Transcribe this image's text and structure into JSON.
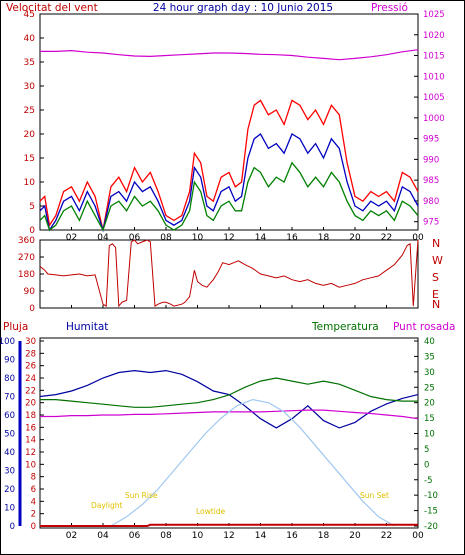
{
  "title": "24 hour graph day : 10 Junio 2015",
  "x_ticks": [
    "02",
    "04",
    "06",
    "08",
    "10",
    "12",
    "14",
    "16",
    "18",
    "20",
    "22",
    "00"
  ],
  "colors": {
    "wind_gust": "#ff0000",
    "wind_avg": "#0000c0",
    "wind_min": "#008000",
    "pressure": "#d000d0",
    "direction": "#c00000",
    "rain": "#c00000",
    "humidity": "#0000a0",
    "temperature": "#007000",
    "dewpoint": "#d000d0",
    "solar": "#a0c8f0",
    "sun_labels": "#e0c000"
  },
  "chart_data": [
    {
      "type": "line",
      "title": "",
      "left_label": "Velocitat del vent",
      "right_label": "Pressió",
      "x_range": [
        0,
        24
      ],
      "y_left_ticks": [
        0,
        5,
        10,
        15,
        20,
        25,
        30,
        35,
        40,
        45
      ],
      "y_left_range": [
        0,
        45
      ],
      "y_right_ticks": [
        975,
        980,
        985,
        990,
        995,
        1000,
        1005,
        1010,
        1015,
        1020,
        1025
      ],
      "y_right_range": [
        973,
        1025
      ],
      "series": [
        {
          "name": "gust",
          "axis": "left",
          "x": [
            0,
            0.3,
            0.6,
            1.0,
            1.5,
            2.0,
            2.5,
            3.0,
            3.5,
            4.0,
            4.5,
            5.0,
            5.5,
            6.0,
            6.5,
            7.0,
            7.5,
            8.0,
            8.5,
            9.0,
            9.5,
            9.8,
            10.2,
            10.6,
            11.0,
            11.5,
            12.0,
            12.4,
            12.8,
            13.2,
            13.6,
            14.0,
            14.5,
            15.0,
            15.5,
            16.0,
            16.5,
            17.0,
            17.5,
            18.0,
            18.5,
            19.0,
            19.5,
            20.0,
            20.5,
            21.0,
            21.5,
            22.0,
            22.5,
            23.0,
            23.5,
            24.0
          ],
          "y": [
            6,
            7,
            1,
            3,
            8,
            9,
            6,
            10,
            7,
            0,
            9,
            11,
            8,
            13,
            10,
            12,
            8,
            3,
            2,
            3,
            8,
            16,
            14,
            7,
            6,
            11,
            12,
            9,
            10,
            21,
            26,
            27,
            24,
            25,
            22,
            27,
            26,
            23,
            25,
            22,
            26,
            24,
            14,
            7,
            6,
            8,
            7,
            8,
            6,
            12,
            11,
            8
          ]
        },
        {
          "name": "average",
          "axis": "left",
          "x": [
            0,
            0.3,
            0.6,
            1.0,
            1.5,
            2.0,
            2.5,
            3.0,
            3.5,
            4.0,
            4.5,
            5.0,
            5.5,
            6.0,
            6.5,
            7.0,
            7.5,
            8.0,
            8.5,
            9.0,
            9.5,
            9.8,
            10.2,
            10.6,
            11.0,
            11.5,
            12.0,
            12.4,
            12.8,
            13.2,
            13.6,
            14.0,
            14.5,
            15.0,
            15.5,
            16.0,
            16.5,
            17.0,
            17.5,
            18.0,
            18.5,
            19.0,
            19.5,
            20.0,
            20.5,
            21.0,
            21.5,
            22.0,
            22.5,
            23.0,
            23.5,
            24.0
          ],
          "y": [
            4,
            5,
            0,
            2,
            6,
            7,
            4,
            8,
            5,
            0,
            7,
            8,
            6,
            10,
            8,
            9,
            6,
            2,
            1,
            2,
            6,
            13,
            11,
            5,
            4,
            8,
            9,
            6,
            7,
            15,
            19,
            20,
            17,
            18,
            16,
            20,
            19,
            16,
            18,
            15,
            19,
            17,
            10,
            5,
            4,
            6,
            5,
            6,
            4,
            9,
            8,
            5
          ]
        },
        {
          "name": "minimum",
          "axis": "left",
          "x": [
            0,
            0.3,
            0.6,
            1.0,
            1.5,
            2.0,
            2.5,
            3.0,
            3.5,
            4.0,
            4.5,
            5.0,
            5.5,
            6.0,
            6.5,
            7.0,
            7.5,
            8.0,
            8.5,
            9.0,
            9.5,
            9.8,
            10.2,
            10.6,
            11.0,
            11.5,
            12.0,
            12.4,
            12.8,
            13.2,
            13.6,
            14.0,
            14.5,
            15.0,
            15.5,
            16.0,
            16.5,
            17.0,
            17.5,
            18.0,
            18.5,
            19.0,
            19.5,
            20.0,
            20.5,
            21.0,
            21.5,
            22.0,
            22.5,
            23.0,
            23.5,
            24.0
          ],
          "y": [
            2,
            3,
            0,
            1,
            4,
            5,
            2,
            6,
            3,
            0,
            5,
            6,
            4,
            7,
            5,
            6,
            4,
            1,
            0,
            1,
            4,
            10,
            8,
            3,
            2,
            5,
            6,
            4,
            4,
            10,
            13,
            12,
            9,
            11,
            10,
            14,
            12,
            9,
            11,
            9,
            12,
            10,
            6,
            3,
            2,
            4,
            3,
            4,
            2,
            6,
            5,
            3
          ]
        },
        {
          "name": "pressure",
          "axis": "right",
          "x": [
            0,
            1,
            2,
            3,
            4,
            5,
            6,
            7,
            8,
            9,
            10,
            11,
            12,
            13,
            14,
            15,
            16,
            17,
            18,
            19,
            20,
            21,
            22,
            23,
            24
          ],
          "y": [
            1016,
            1016,
            1016.2,
            1015.8,
            1015.6,
            1015.2,
            1014.9,
            1014.8,
            1015,
            1015.2,
            1015.4,
            1015.6,
            1015.6,
            1015.5,
            1015.3,
            1015.2,
            1015,
            1014.6,
            1014.3,
            1014,
            1014.3,
            1014.7,
            1015.2,
            1015.9,
            1016.4
          ]
        }
      ]
    },
    {
      "type": "line",
      "title": "",
      "y_left_ticks": [
        0,
        90,
        180,
        270,
        360
      ],
      "y_left_range": [
        0,
        360
      ],
      "y_right_labels": [
        "N",
        "W",
        "S",
        "E",
        "N"
      ],
      "series": [
        {
          "name": "direction",
          "x": [
            0,
            0.3,
            0.5,
            1.0,
            1.5,
            2.0,
            2.5,
            3.0,
            3.5,
            4.0,
            4.2,
            4.4,
            4.6,
            4.8,
            5.0,
            5.2,
            5.5,
            5.8,
            6.0,
            6.2,
            6.5,
            6.8,
            7.0,
            7.3,
            7.5,
            7.8,
            8.0,
            8.3,
            8.5,
            9.0,
            9.2,
            9.5,
            9.8,
            10.0,
            10.3,
            10.6,
            11.0,
            11.3,
            11.6,
            12.0,
            12.3,
            12.6,
            13.0,
            13.5,
            14.0,
            14.5,
            15.0,
            15.5,
            16.0,
            16.5,
            17.0,
            17.5,
            18.0,
            18.5,
            19.0,
            19.5,
            20.0,
            20.5,
            21.0,
            21.5,
            22.0,
            22.5,
            23.0,
            23.3,
            23.5,
            23.7,
            24.0
          ],
          "y": [
            220,
            200,
            180,
            175,
            170,
            175,
            180,
            170,
            175,
            20,
            10,
            330,
            340,
            320,
            10,
            30,
            40,
            350,
            360,
            340,
            350,
            360,
            350,
            10,
            20,
            30,
            30,
            20,
            10,
            20,
            30,
            60,
            200,
            140,
            120,
            110,
            150,
            190,
            240,
            230,
            240,
            250,
            230,
            210,
            180,
            170,
            160,
            170,
            150,
            140,
            150,
            130,
            120,
            130,
            110,
            120,
            130,
            150,
            160,
            170,
            200,
            230,
            280,
            330,
            340,
            10,
            360
          ]
        }
      ]
    },
    {
      "type": "line",
      "title": "",
      "left_label_1": "Pluja",
      "left_label_2": "Humitat",
      "mid_label": "Temperatura",
      "right_label": "Punt rosada",
      "y_rain_ticks": [
        0,
        2,
        4,
        6,
        8,
        10,
        12,
        14,
        16,
        18,
        20,
        22,
        24,
        26,
        28,
        30
      ],
      "y_humidity_ticks": [
        0,
        10,
        20,
        30,
        40,
        50,
        60,
        70,
        80,
        90,
        100
      ],
      "y_temp_ticks": [
        -20,
        -15,
        -10,
        -5,
        0,
        5,
        10,
        15,
        20,
        25,
        30,
        35,
        40
      ],
      "sun_labels": [
        "Daylight",
        "Sun Rise",
        "Lowtide",
        "Sun Set"
      ],
      "series": [
        {
          "name": "humidity",
          "axis": "humidity",
          "x": [
            0,
            1,
            2,
            3,
            4,
            5,
            6,
            7,
            8,
            9,
            10,
            11,
            12,
            13,
            14,
            15,
            16,
            17,
            18,
            19,
            20,
            21,
            22,
            23,
            24
          ],
          "y": [
            70,
            71,
            73,
            76,
            80,
            83,
            84,
            83,
            84,
            82,
            78,
            73,
            71,
            65,
            58,
            53,
            58,
            65,
            57,
            53,
            56,
            62,
            66,
            69,
            71
          ]
        },
        {
          "name": "temperature",
          "axis": "temp",
          "x": [
            0,
            1,
            2,
            3,
            4,
            5,
            6,
            7,
            8,
            9,
            10,
            11,
            12,
            13,
            14,
            15,
            16,
            17,
            18,
            19,
            20,
            21,
            22,
            23,
            24
          ],
          "y": [
            21,
            21,
            20.5,
            20,
            19.5,
            19,
            18.5,
            18.5,
            19,
            19.5,
            20,
            21,
            22.5,
            25,
            27,
            28,
            27,
            26,
            27,
            26,
            24,
            22,
            21,
            20.5,
            20.5
          ]
        },
        {
          "name": "dewpoint",
          "axis": "temp",
          "x": [
            0,
            1,
            2,
            3,
            4,
            5,
            6,
            7,
            8,
            9,
            10,
            11,
            12,
            13,
            14,
            15,
            16,
            17,
            18,
            19,
            20,
            21,
            22,
            23,
            24
          ],
          "y": [
            15.5,
            15.5,
            15.8,
            15.8,
            16,
            16,
            16.2,
            16.2,
            16.4,
            16.6,
            16.8,
            17,
            17,
            17,
            17,
            17.2,
            17.4,
            17.6,
            17.6,
            17.2,
            16.8,
            16.5,
            16,
            15.5,
            14.8
          ]
        },
        {
          "name": "solar",
          "axis": "temp",
          "x": [
            4.5,
            5.5,
            6.5,
            7.5,
            8.5,
            9.5,
            10.5,
            11.5,
            12.5,
            13.5,
            14.5,
            15.5,
            16.5,
            17.5,
            18.5,
            19.5,
            20.5,
            21.5,
            22.5
          ],
          "y": [
            -20,
            -17,
            -13,
            -8,
            -2,
            4,
            10,
            15,
            19,
            21,
            20,
            17,
            12,
            6,
            0,
            -6,
            -12,
            -17,
            -20
          ]
        },
        {
          "name": "rain",
          "axis": "rain",
          "x": [
            0,
            6.8,
            7,
            24
          ],
          "y": [
            0,
            0,
            0.2,
            0.2
          ]
        }
      ]
    }
  ]
}
